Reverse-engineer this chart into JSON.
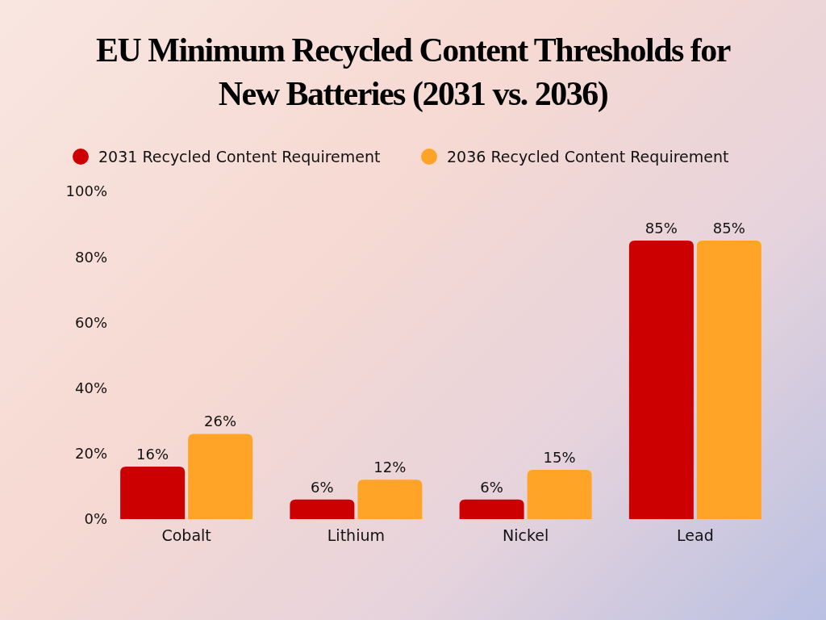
{
  "chart_data": {
    "type": "bar",
    "title": "EU Minimum Recycled Content Thresholds for New Batteries (2031 vs. 2036)",
    "categories": [
      "Cobalt",
      "Lithium",
      "Nickel",
      "Lead"
    ],
    "series": [
      {
        "name": "2031 Recycled Content Requirement",
        "color": "#cc0000",
        "values": [
          16,
          6,
          6,
          85
        ],
        "value_labels": [
          "16%",
          "6%",
          "6%",
          "85%"
        ]
      },
      {
        "name": "2036 Recycled Content Requirement",
        "color": "#ffa426",
        "values": [
          26,
          12,
          15,
          85
        ],
        "value_labels": [
          "26%",
          "12%",
          "15%",
          "85%"
        ]
      }
    ],
    "ylim": [
      0,
      100
    ],
    "yticks": [
      {
        "value": 0,
        "label": "0%"
      },
      {
        "value": 20,
        "label": "20%"
      },
      {
        "value": 40,
        "label": "40%"
      },
      {
        "value": 60,
        "label": "60%"
      },
      {
        "value": 80,
        "label": "80%"
      },
      {
        "value": 100,
        "label": "100%"
      }
    ],
    "legend": "top"
  }
}
